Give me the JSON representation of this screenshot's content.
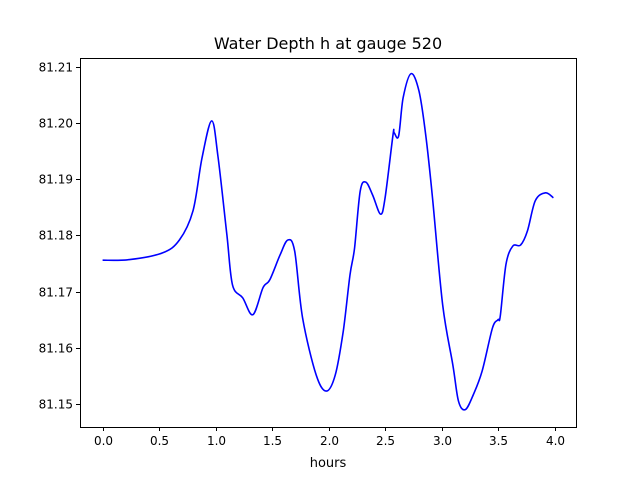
{
  "chart_data": {
    "type": "line",
    "title": "Water Depth h at gauge 520",
    "xlabel": "hours",
    "ylabel": "",
    "xlim": [
      -0.2,
      4.19
    ],
    "ylim": [
      81.1459,
      81.2116
    ],
    "grid": false,
    "xticks": [
      0.0,
      0.5,
      1.0,
      1.5,
      2.0,
      2.5,
      3.0,
      3.5,
      4.0
    ],
    "xtick_labels": [
      "0.0",
      "0.5",
      "1.0",
      "1.5",
      "2.0",
      "2.5",
      "3.0",
      "3.5",
      "4.0"
    ],
    "yticks": [
      81.15,
      81.16,
      81.17,
      81.18,
      81.19,
      81.2,
      81.21
    ],
    "ytick_labels": [
      "81.15",
      "81.16",
      "81.17",
      "81.18",
      "81.19",
      "81.20",
      "81.21"
    ],
    "series": [
      {
        "name": "h",
        "color": "#0000ff",
        "x": [
          0.0,
          0.24,
          0.53,
          0.68,
          0.8,
          0.88,
          0.965,
          1.02,
          1.1,
          1.15,
          1.24,
          1.33,
          1.42,
          1.48,
          1.57,
          1.64,
          1.7,
          1.77,
          1.89,
          1.98,
          2.06,
          2.13,
          2.19,
          2.23,
          2.28,
          2.33,
          2.39,
          2.46,
          2.5,
          2.57,
          2.58,
          2.62,
          2.66,
          2.73,
          2.8,
          2.86,
          2.92,
          3.01,
          3.1,
          3.15,
          3.21,
          3.28,
          3.36,
          3.45,
          3.5,
          3.52,
          3.57,
          3.63,
          3.7,
          3.76,
          3.83,
          3.92,
          3.99
        ],
        "y": [
          81.1756,
          81.1757,
          81.1769,
          81.1792,
          81.1844,
          81.1938,
          81.2004,
          81.1943,
          81.1801,
          81.1712,
          81.1689,
          81.1659,
          81.1707,
          81.1721,
          81.1765,
          81.1792,
          81.1772,
          81.1653,
          81.1552,
          81.1523,
          81.1552,
          81.163,
          81.173,
          81.1778,
          81.1879,
          81.1895,
          81.1872,
          81.1838,
          81.1867,
          81.1979,
          81.1983,
          81.1977,
          81.2045,
          81.2088,
          81.2057,
          81.1979,
          81.1867,
          81.1676,
          81.157,
          81.1505,
          81.149,
          81.1516,
          81.1559,
          81.1635,
          81.165,
          81.1657,
          81.1748,
          81.1781,
          81.1783,
          81.1808,
          81.1862,
          81.1876,
          81.1867
        ]
      }
    ]
  }
}
